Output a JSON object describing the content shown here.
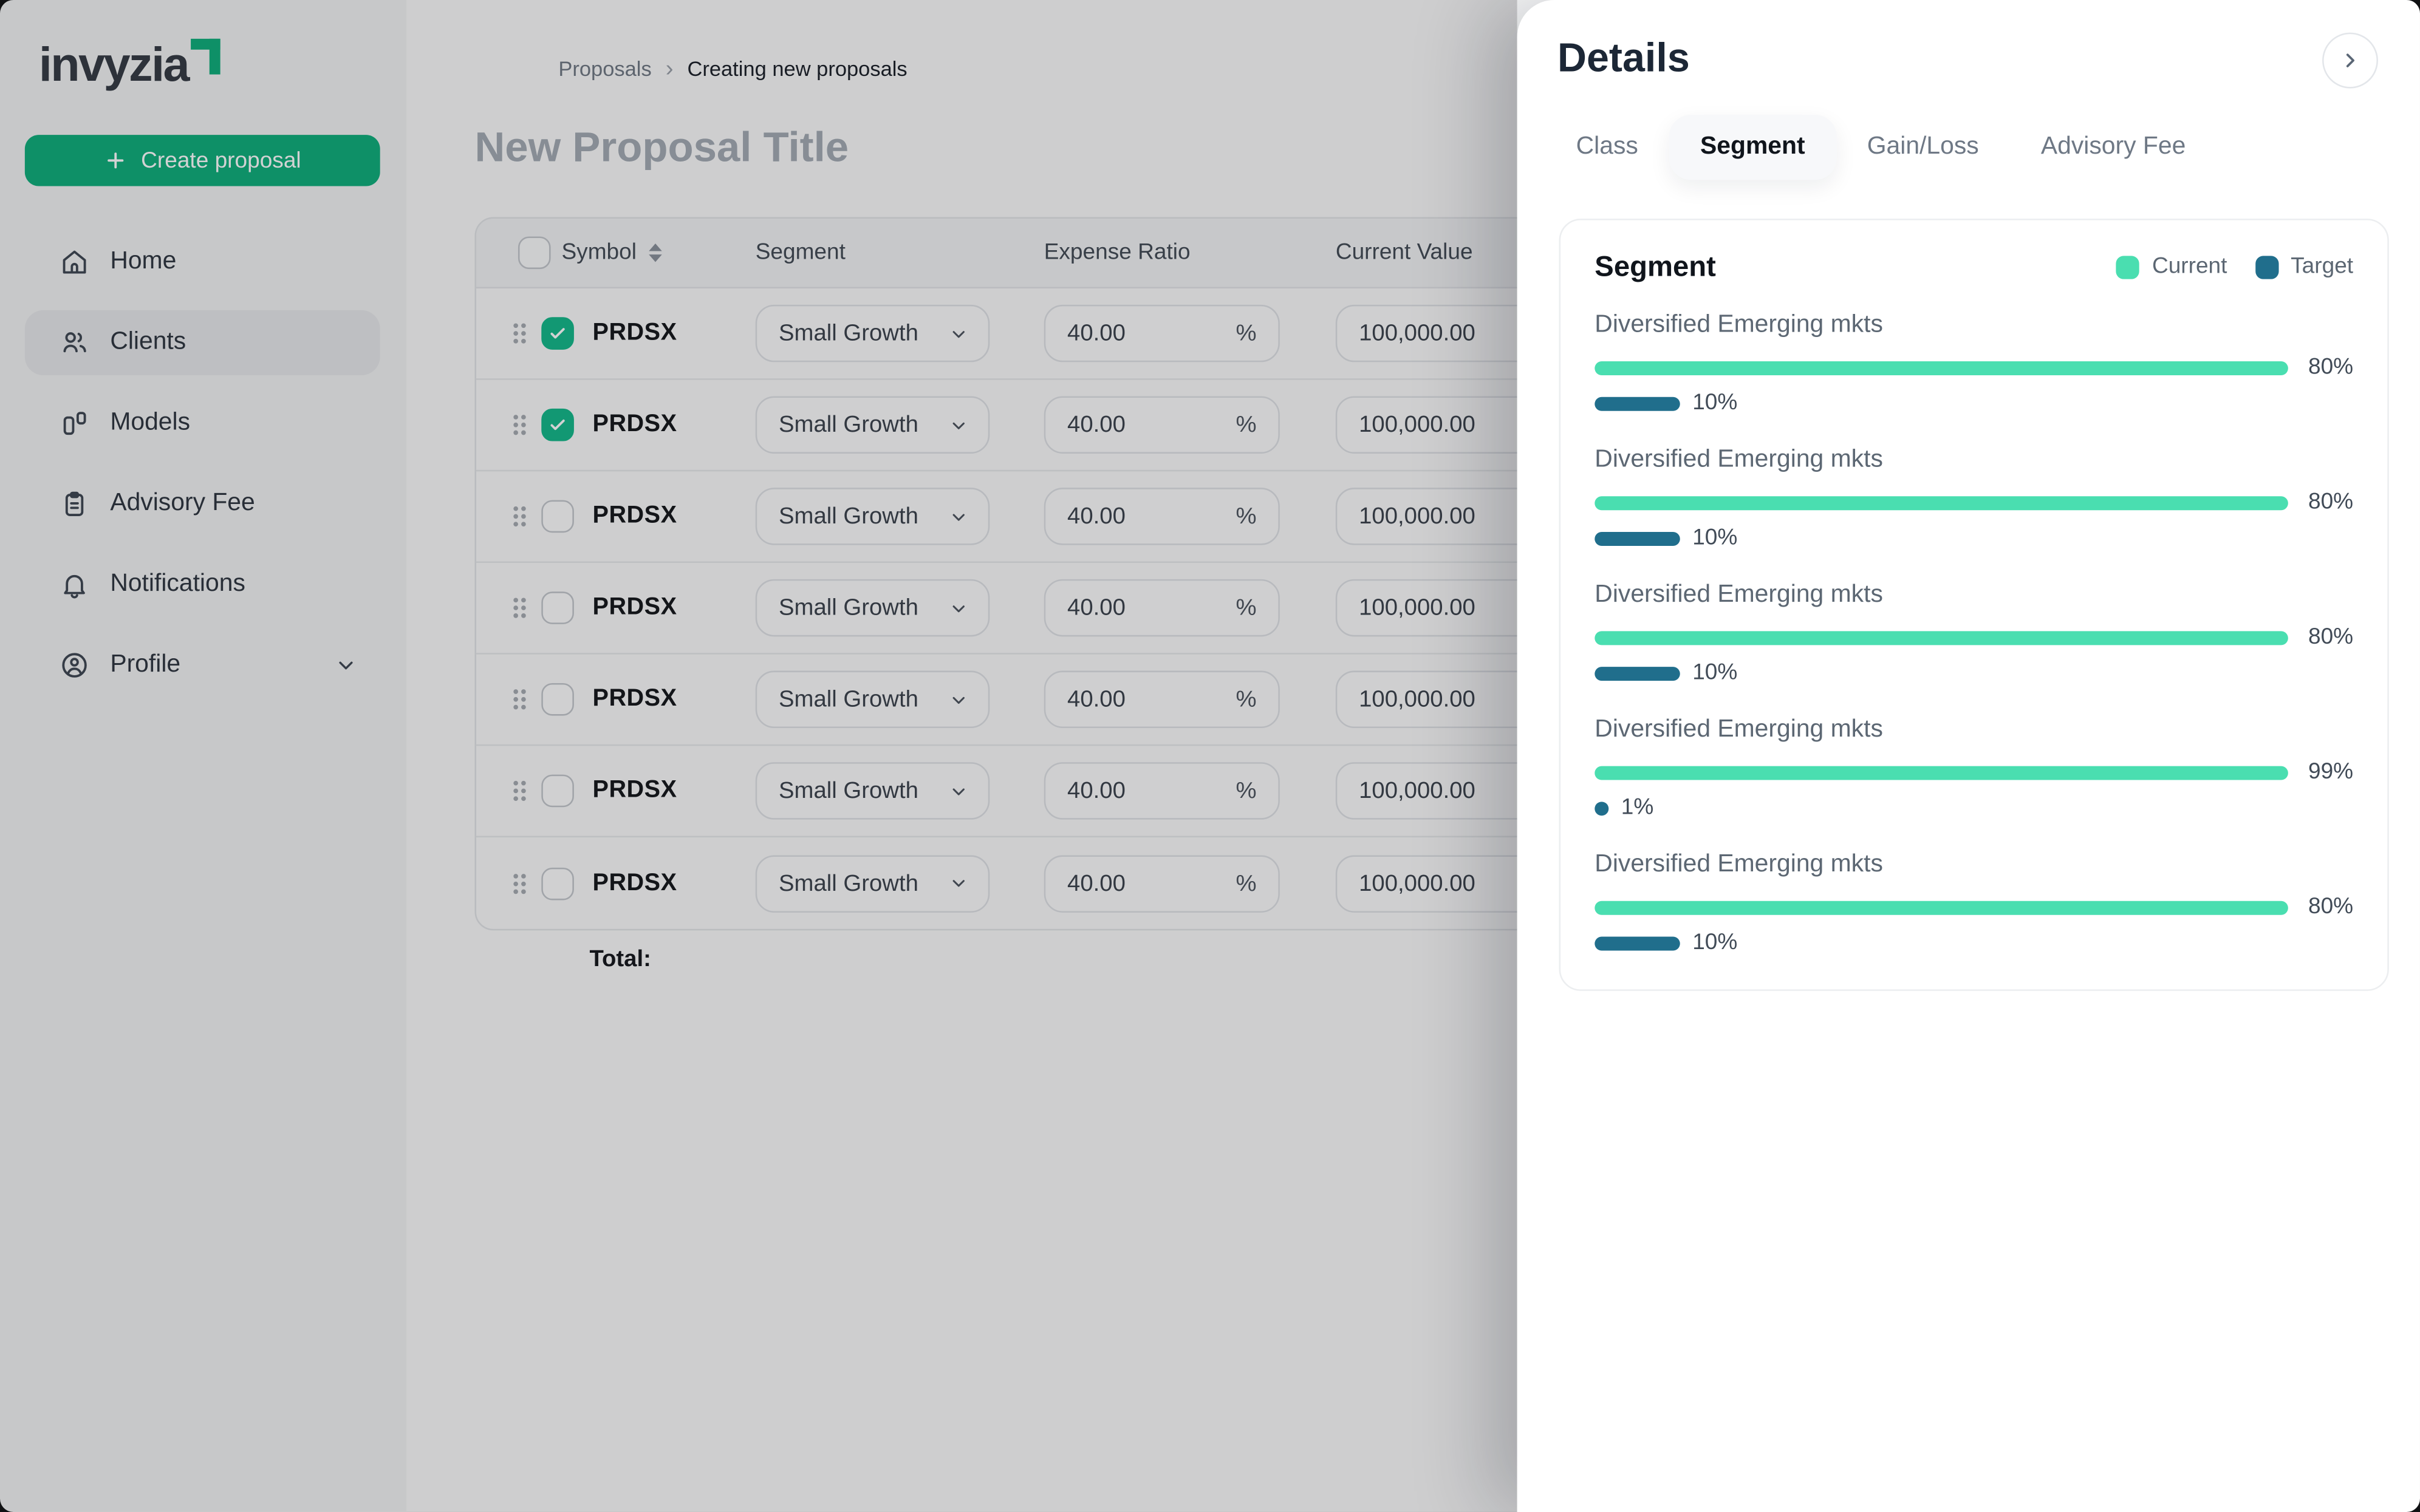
{
  "theme": {
    "brand_green": "#0fae7b",
    "checkbox_green": "#14b88a",
    "current_color": "#4adeb0",
    "target_color": "#206e8c"
  },
  "sidebar": {
    "logo_text": "invyzia",
    "create_button_label": "Create proposal",
    "items": [
      {
        "label": "Home",
        "icon": "home-icon",
        "active": false
      },
      {
        "label": "Clients",
        "icon": "users-icon",
        "active": true
      },
      {
        "label": "Models",
        "icon": "models-icon",
        "active": false
      },
      {
        "label": "Advisory Fee",
        "icon": "clipboard-icon",
        "active": false
      },
      {
        "label": "Notifications",
        "icon": "bell-icon",
        "active": false
      },
      {
        "label": "Profile",
        "icon": "user-circle-icon",
        "active": false,
        "chevron": "chevron-down-icon"
      }
    ]
  },
  "breadcrumb": {
    "items": [
      "Proposals",
      "Creating new proposals"
    ]
  },
  "main": {
    "page_title": "New Proposal Title",
    "total_label": "Total:"
  },
  "table": {
    "headers": {
      "symbol": "Symbol",
      "segment": "Segment",
      "expense_ratio": "Expense Ratio",
      "current_value": "Current Value"
    },
    "rows": [
      {
        "symbol": "PRDSX",
        "segment": "Small Growth",
        "expense_ratio": "40.00",
        "expense_suffix": "%",
        "current_value": "100,000.00",
        "checked": true
      },
      {
        "symbol": "PRDSX",
        "segment": "Small Growth",
        "expense_ratio": "40.00",
        "expense_suffix": "%",
        "current_value": "100,000.00",
        "checked": true
      },
      {
        "symbol": "PRDSX",
        "segment": "Small Growth",
        "expense_ratio": "40.00",
        "expense_suffix": "%",
        "current_value": "100,000.00",
        "checked": false
      },
      {
        "symbol": "PRDSX",
        "segment": "Small Growth",
        "expense_ratio": "40.00",
        "expense_suffix": "%",
        "current_value": "100,000.00",
        "checked": false
      },
      {
        "symbol": "PRDSX",
        "segment": "Small Growth",
        "expense_ratio": "40.00",
        "expense_suffix": "%",
        "current_value": "100,000.00",
        "checked": false
      },
      {
        "symbol": "PRDSX",
        "segment": "Small Growth",
        "expense_ratio": "40.00",
        "expense_suffix": "%",
        "current_value": "100,000.00",
        "checked": false
      },
      {
        "symbol": "PRDSX",
        "segment": "Small Growth",
        "expense_ratio": "40.00",
        "expense_suffix": "%",
        "current_value": "100,000.00",
        "checked": false
      }
    ]
  },
  "details_panel": {
    "title": "Details",
    "tabs": [
      {
        "label": "Class",
        "active": false
      },
      {
        "label": "Segment",
        "active": true
      },
      {
        "label": "Gain/Loss",
        "active": false
      },
      {
        "label": "Advisory Fee",
        "active": false
      }
    ],
    "card_title": "Segment",
    "legend": [
      {
        "label": "Current"
      },
      {
        "label": "Target"
      }
    ]
  },
  "chart_data": {
    "type": "bar",
    "orientation": "horizontal",
    "title": "Segment",
    "legend": [
      "Current",
      "Target"
    ],
    "legend_position": "top-right",
    "value_suffix": "%",
    "items": [
      {
        "label": "Diversified Emerging mkts",
        "current": 80,
        "target": 10
      },
      {
        "label": "Diversified Emerging mkts",
        "current": 80,
        "target": 10
      },
      {
        "label": "Diversified Emerging mkts",
        "current": 80,
        "target": 10
      },
      {
        "label": "Diversified Emerging mkts",
        "current": 99,
        "target": 1
      },
      {
        "label": "Diversified Emerging mkts",
        "current": 80,
        "target": 10
      }
    ]
  }
}
